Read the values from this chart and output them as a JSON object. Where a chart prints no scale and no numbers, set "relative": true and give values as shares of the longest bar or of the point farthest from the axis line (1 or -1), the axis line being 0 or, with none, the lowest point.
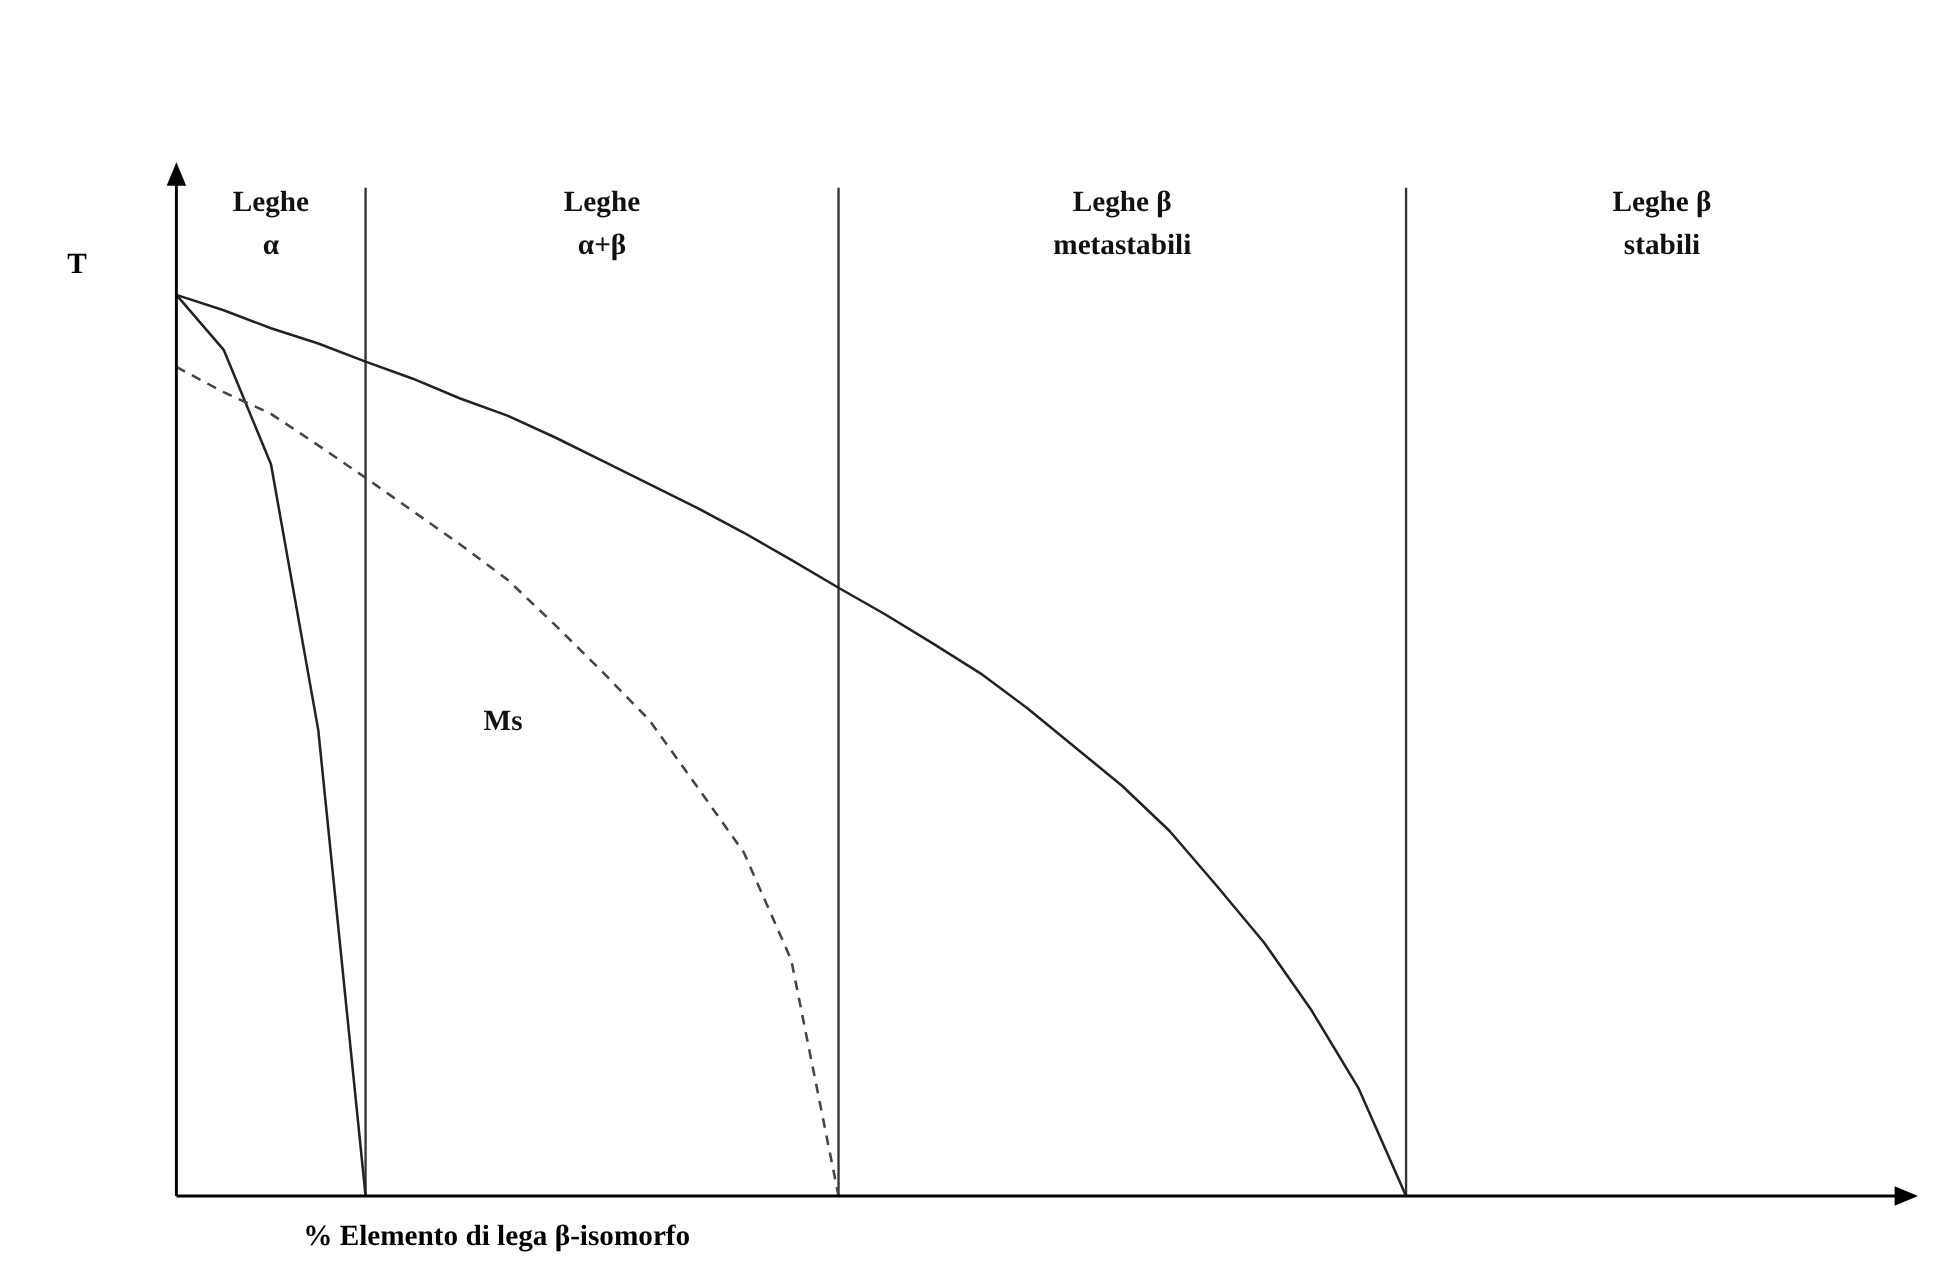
{
  "chart_data": {
    "type": "line",
    "relative": true,
    "grid": "x",
    "xlabel": "% Elemento di lega β-isomorfo",
    "ylabel": "T",
    "categories": [
      null,
      null,
      null,
      null,
      null,
      null,
      null,
      null,
      null,
      null,
      null,
      null,
      null,
      null,
      null,
      null,
      null,
      null,
      null,
      null,
      null,
      null,
      null,
      null,
      null,
      null,
      null,
      null,
      null,
      null,
      null,
      null,
      null,
      null,
      null,
      null,
      null
    ],
    "series": [
      {
        "color": "#222222",
        "line_style": "solid",
        "values": [
          1,
          0.983,
          0.963,
          0.946,
          0.926,
          0.907,
          0.885,
          0.866,
          0.842,
          0.816,
          0.79,
          0.764,
          0.736,
          0.706,
          0.675,
          0.645,
          0.613,
          0.58,
          0.541,
          0.498,
          0.455,
          0.405,
          0.344,
          0.281,
          0.206,
          0.119,
          0,
          null,
          null,
          null,
          null,
          null,
          null,
          null,
          null,
          null,
          null
        ]
      },
      {
        "color": "#222222",
        "line_style": "solid",
        "values": [
          1,
          0.939,
          0.812,
          0.517,
          0,
          null,
          null,
          null,
          null,
          null,
          null,
          null,
          null,
          null,
          null,
          null,
          null,
          null,
          null,
          null,
          null,
          null,
          null,
          null,
          null,
          null,
          null,
          null,
          null,
          null,
          null,
          null,
          null,
          null,
          null,
          null,
          null
        ]
      },
      {
        "name": "Ms",
        "color": "#444444",
        "line_style": "dashed",
        "values": [
          0.92,
          0.892,
          0.868,
          0.833,
          0.797,
          0.76,
          0.723,
          0.684,
          0.634,
          0.582,
          0.528,
          0.455,
          0.381,
          0.262,
          0,
          null,
          null,
          null,
          null,
          null,
          null,
          null,
          null,
          null,
          null,
          null,
          null,
          null,
          null,
          null,
          null,
          null,
          null,
          null,
          null,
          null,
          null
        ]
      }
    ],
    "annotations": [
      "Leghe\nα",
      "Leghe\nα+β",
      "Leghe β\nmetastabili",
      "Leghe β\nstabili"
    ]
  }
}
